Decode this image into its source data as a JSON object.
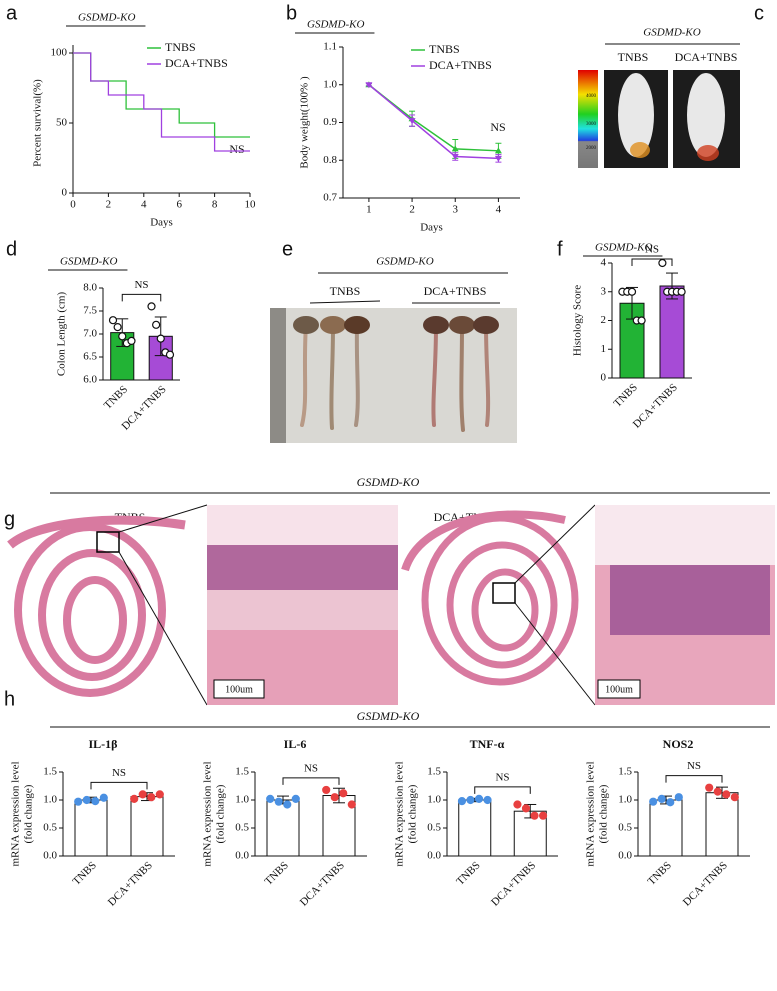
{
  "panel_labels": [
    "a",
    "b",
    "c",
    "d",
    "e",
    "f",
    "g",
    "h"
  ],
  "panel_c": {
    "title": "GSDMD-KO",
    "labels": [
      "TNBS",
      "DCA+TNBS"
    ],
    "colorbar_ticks": [
      4000,
      3000,
      2000
    ]
  },
  "panel_e": {
    "title": "GSDMD-KO",
    "labels": [
      "TNBS",
      "DCA+TNBS"
    ]
  },
  "panel_g": {
    "title": "GSDMD-KO",
    "labels": [
      "TNBS",
      "DCA+TNBS"
    ],
    "scale_bars": [
      "100um",
      "100um"
    ]
  },
  "panel_h": {
    "title": "GSDMD-KO"
  },
  "chart_data": [
    {
      "type": "step",
      "title": "GSDMD-KO",
      "xlabel": "Days",
      "ylabel": "Percent survival(%)",
      "xlim": [
        0,
        10
      ],
      "xticks": [
        0,
        2,
        4,
        6,
        8,
        10
      ],
      "ylim": [
        0,
        100
      ],
      "yticks": [
        0,
        50,
        100
      ],
      "series": [
        {
          "name": "TNBS",
          "color": "#2ec13a",
          "x": [
            0,
            1,
            3,
            6,
            8,
            10
          ],
          "values": [
            100,
            80,
            60,
            50,
            40,
            40
          ]
        },
        {
          "name": "DCA+TNBS",
          "color": "#a040e0",
          "x": [
            0,
            1,
            2,
            4,
            5,
            8,
            10
          ],
          "values": [
            100,
            80,
            70,
            60,
            40,
            30,
            30
          ]
        }
      ],
      "annotation": "NS"
    },
    {
      "type": "line",
      "title": "GSDMD-KO",
      "xlabel": "Days",
      "ylabel": "Body weight(100% )",
      "x": [
        1,
        2,
        3,
        4
      ],
      "xlim": [
        0.4,
        4.5
      ],
      "xticks": [
        1,
        2,
        3,
        4
      ],
      "ylim": [
        0.7,
        1.1
      ],
      "yticks": [
        0.7,
        0.8,
        0.9,
        {
          "value": 1,
          "label": "1.0"
        },
        1.1
      ],
      "series": [
        {
          "name": "TNBS",
          "color": "#2ec13a",
          "values": [
            1.0,
            0.91,
            0.83,
            0.825
          ],
          "errors": [
            0.003,
            0.02,
            0.025,
            0.02
          ]
        },
        {
          "name": "DCA+TNBS",
          "color": "#a040e0",
          "values": [
            1.0,
            0.905,
            0.81,
            0.805
          ],
          "errors": [
            0.003,
            0.015,
            0.01,
            0.01
          ]
        }
      ],
      "annotation": "NS"
    },
    {
      "type": "bar",
      "title": "GSDMD-KO",
      "ylabel": "Colon Length (cm)",
      "categories": [
        "TNBS",
        "DCA+TNBS"
      ],
      "values": [
        7.03,
        6.95
      ],
      "errors": [
        0.3,
        0.42
      ],
      "points": [
        [
          7.3,
          7.15,
          6.95,
          6.8,
          6.85
        ],
        [
          7.6,
          7.2,
          6.9,
          6.6,
          6.55
        ]
      ],
      "bar_colors": [
        "#22b335",
        "#a64bd6"
      ],
      "point_colors": [
        "#ffffff",
        "#ffffff"
      ],
      "ylim": [
        6,
        8
      ],
      "yticks": [
        {
          "value": 6,
          "label": "6.0"
        },
        6.5,
        {
          "value": 7,
          "label": "7.0"
        },
        7.5,
        {
          "value": 8,
          "label": "8.0"
        }
      ],
      "annotation": "NS"
    },
    {
      "type": "bar",
      "title": "GSDMD-KO",
      "ylabel": "Histology Score",
      "categories": [
        "TNBS",
        "DCA+TNBS"
      ],
      "values": [
        2.6,
        3.2
      ],
      "errors": [
        0.55,
        0.45
      ],
      "points": [
        [
          3,
          3,
          3,
          2,
          2
        ],
        [
          4,
          3,
          3,
          3,
          3
        ]
      ],
      "bar_colors": [
        "#22b335",
        "#a64bd6"
      ],
      "point_colors": [
        "#ffffff",
        "#ffffff"
      ],
      "ylim": [
        0,
        4
      ],
      "yticks": [
        0,
        1,
        2,
        3,
        4
      ],
      "annotation": "NS"
    },
    {
      "type": "bar",
      "title": "IL-1β",
      "ylabel": [
        "mRNA expression level",
        "(fold change)"
      ],
      "categories": [
        "TNBS",
        "DCA+TNBS"
      ],
      "values": [
        1.0,
        1.06
      ],
      "errors": [
        0.05,
        0.07
      ],
      "points": [
        [
          0.97,
          1.0,
          0.98,
          1.04
        ],
        [
          1.02,
          1.1,
          1.05,
          1.1
        ]
      ],
      "bar_colors": [
        "#ffffff",
        "#ffffff"
      ],
      "point_colors": [
        "#4a90e2",
        "#e84040"
      ],
      "ylim": [
        0,
        1.5
      ],
      "yticks": [
        {
          "value": 0,
          "label": "0.0"
        },
        0.5,
        {
          "value": 1,
          "label": "1.0"
        },
        1.5
      ],
      "annotation": "NS"
    },
    {
      "type": "bar",
      "title": "IL-6",
      "ylabel": [
        "mRNA expression level",
        "(fold change)"
      ],
      "categories": [
        "TNBS",
        "DCA+TNBS"
      ],
      "values": [
        1.0,
        1.08
      ],
      "errors": [
        0.07,
        0.13
      ],
      "points": [
        [
          1.02,
          0.97,
          0.92,
          1.02
        ],
        [
          1.18,
          1.05,
          1.12,
          0.92
        ]
      ],
      "bar_colors": [
        "#ffffff",
        "#ffffff"
      ],
      "point_colors": [
        "#4a90e2",
        "#e84040"
      ],
      "ylim": [
        0,
        1.5
      ],
      "yticks": [
        {
          "value": 0,
          "label": "0.0"
        },
        0.5,
        {
          "value": 1,
          "label": "1.0"
        },
        1.5
      ],
      "annotation": "NS"
    },
    {
      "type": "bar",
      "title": "TNF-α",
      "ylabel": [
        "mRNA expression level",
        "(fold change)"
      ],
      "categories": [
        "TNBS",
        "DCA+TNBS"
      ],
      "values": [
        1.0,
        0.8
      ],
      "errors": [
        0.03,
        0.12
      ],
      "points": [
        [
          0.98,
          1.0,
          1.02,
          1.0
        ],
        [
          0.92,
          0.85,
          0.72,
          0.72
        ]
      ],
      "bar_colors": [
        "#ffffff",
        "#ffffff"
      ],
      "point_colors": [
        "#4a90e2",
        "#e84040"
      ],
      "ylim": [
        0,
        1.5
      ],
      "yticks": [
        {
          "value": 0,
          "label": "0.0"
        },
        0.5,
        {
          "value": 1,
          "label": "1.0"
        },
        1.5
      ],
      "annotation": "NS"
    },
    {
      "type": "bar",
      "title": "NOS2",
      "ylabel": [
        "mRNA expression level",
        "(fold change)"
      ],
      "categories": [
        "TNBS",
        "DCA+TNBS"
      ],
      "values": [
        1.0,
        1.13
      ],
      "errors": [
        0.07,
        0.1
      ],
      "points": [
        [
          0.97,
          1.02,
          0.96,
          1.05
        ],
        [
          1.22,
          1.15,
          1.1,
          1.05
        ]
      ],
      "bar_colors": [
        "#ffffff",
        "#ffffff"
      ],
      "point_colors": [
        "#4a90e2",
        "#e84040"
      ],
      "ylim": [
        0,
        1.5
      ],
      "yticks": [
        {
          "value": 0,
          "label": "0.0"
        },
        0.5,
        {
          "value": 1,
          "label": "1.0"
        },
        1.5
      ],
      "annotation": "NS"
    }
  ]
}
